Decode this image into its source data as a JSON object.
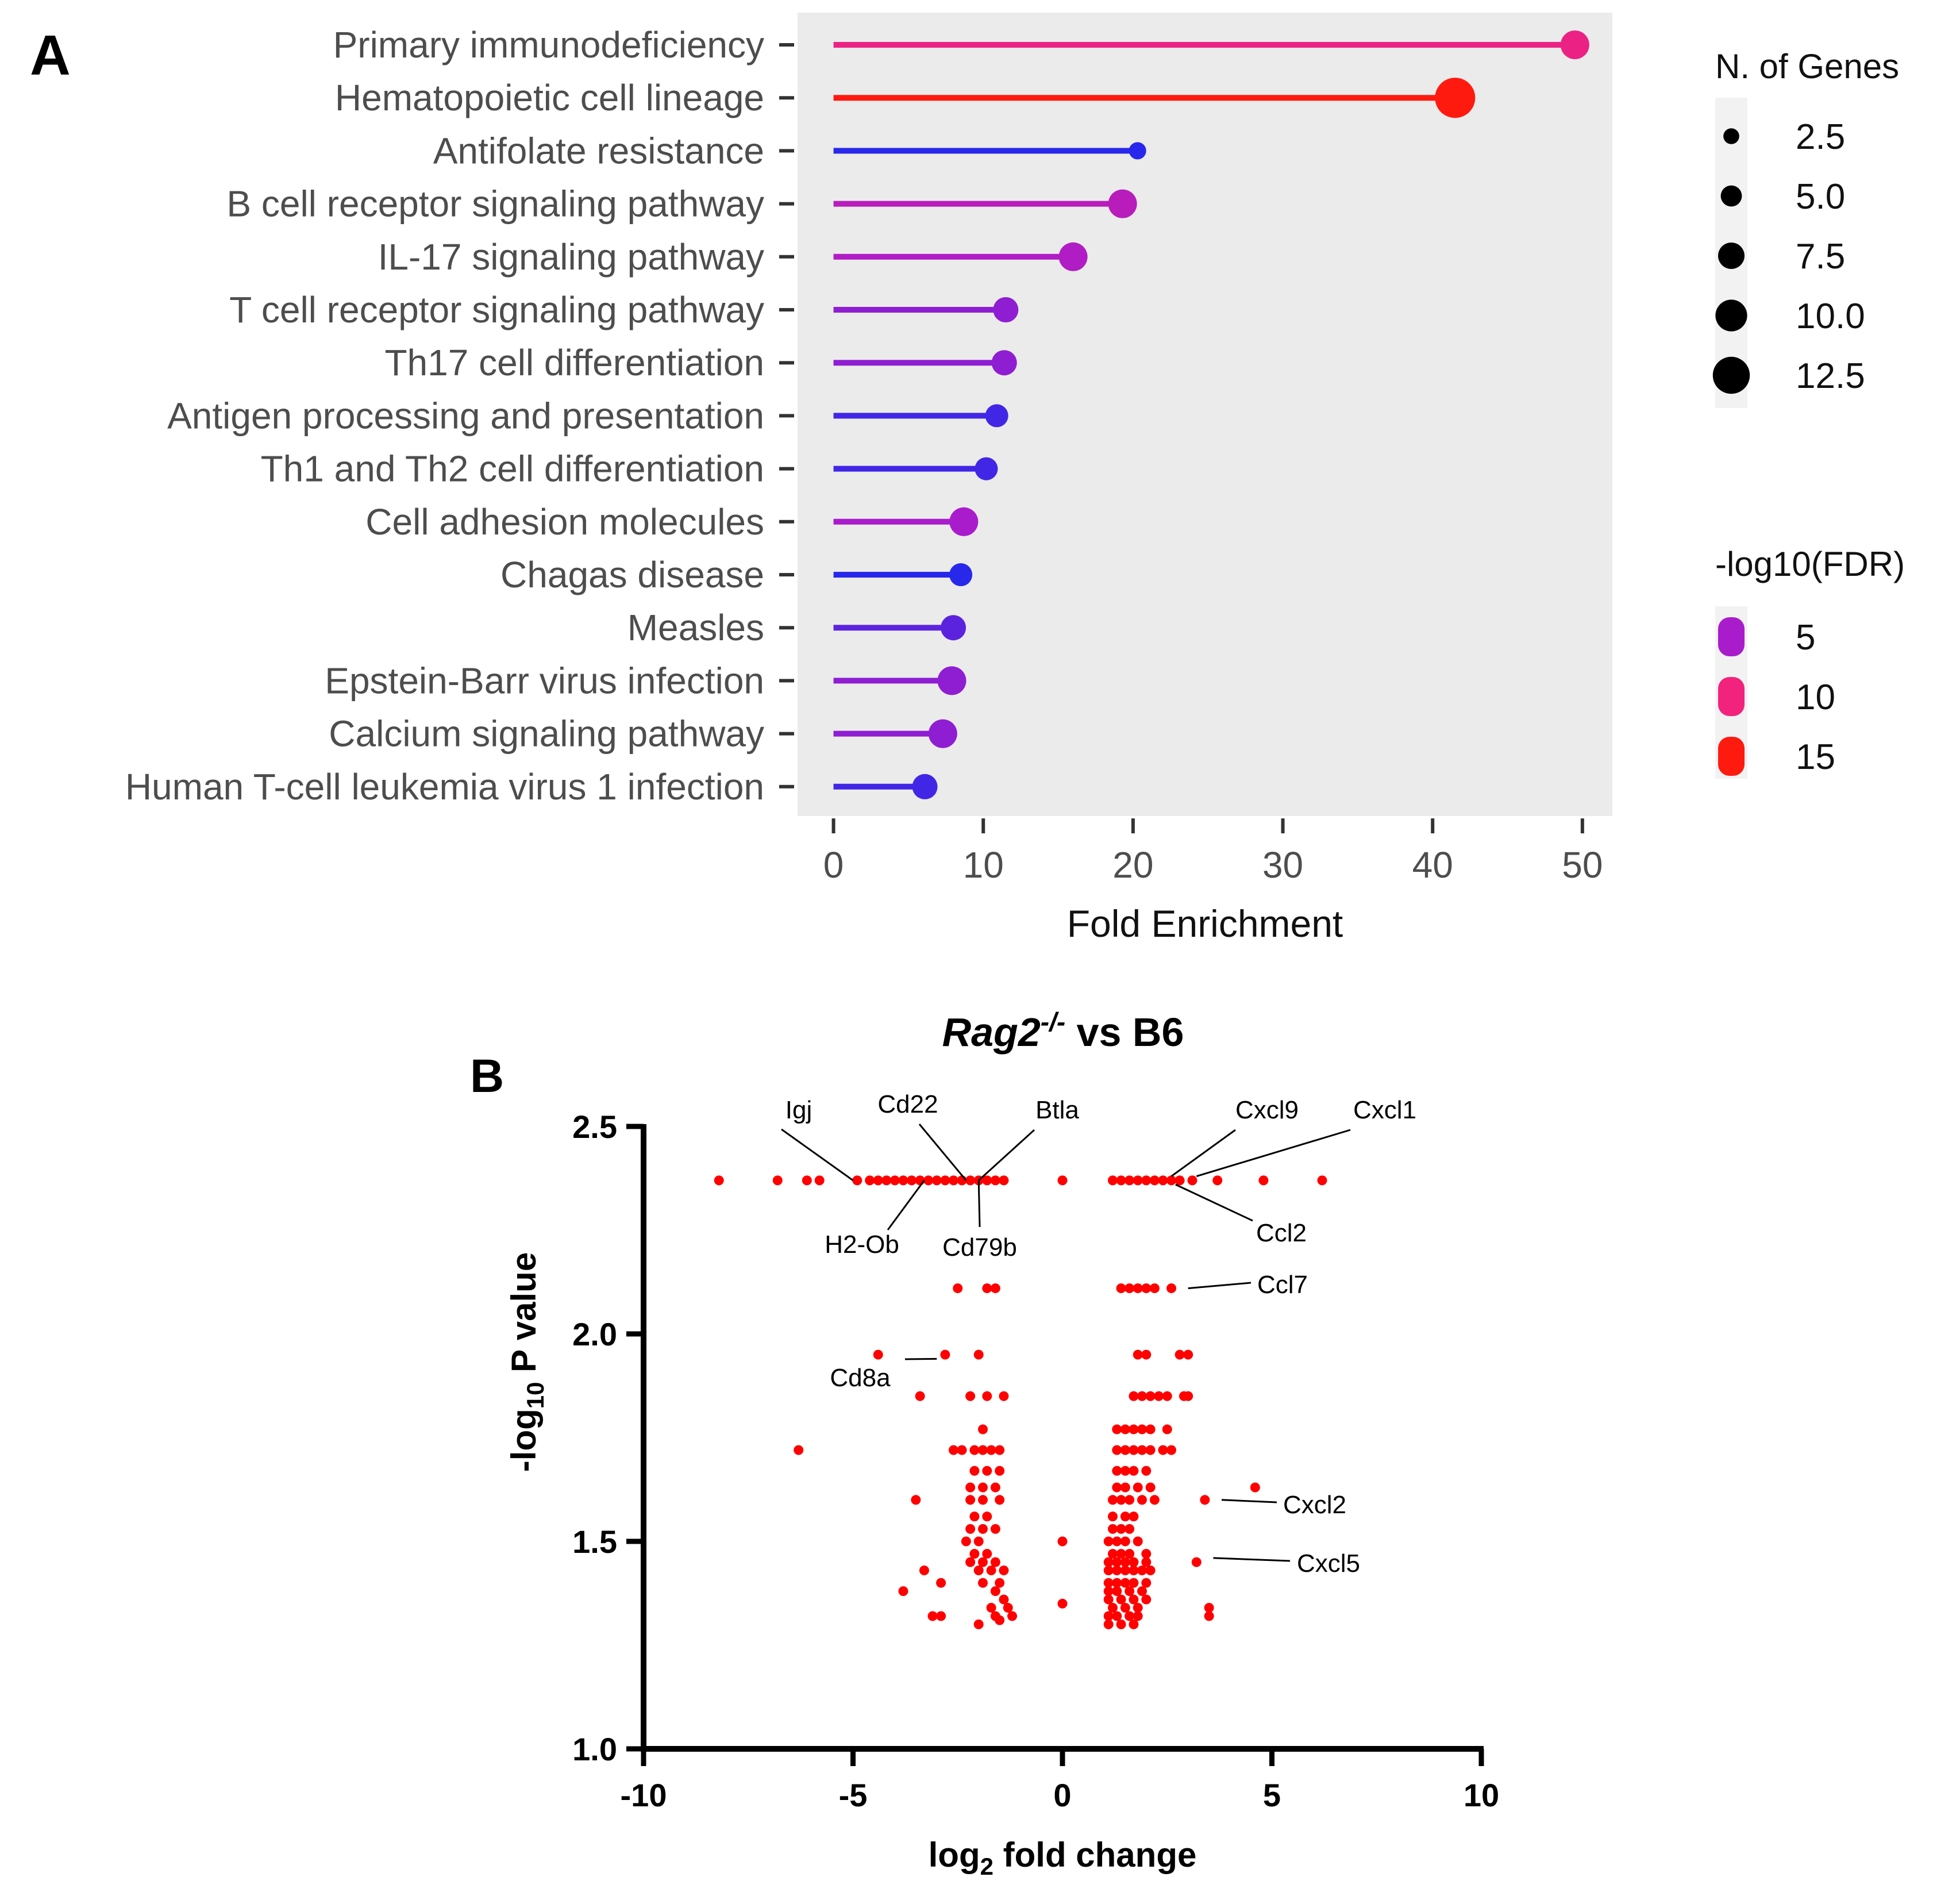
{
  "chart_data": [
    {
      "panel": "A",
      "type": "lollipop",
      "xlabel": "Fold Enrichment",
      "xlim": [
        -2.4,
        52
      ],
      "xticks": [
        0,
        10,
        20,
        30,
        40,
        50
      ],
      "pathways": [
        {
          "name": "Primary immunodeficiency",
          "fold": 49.5,
          "genes": 7.5,
          "fdr": 9.5
        },
        {
          "name": "Hematopoietic cell lineage",
          "fold": 41.5,
          "genes": 12.5,
          "fdr": 15
        },
        {
          "name": "Antifolate resistance",
          "fold": 20.3,
          "genes": 2.5,
          "fdr": 2.5
        },
        {
          "name": "B cell receptor signaling pathway",
          "fold": 19.3,
          "genes": 7.5,
          "fdr": 6
        },
        {
          "name": "IL-17 signaling pathway",
          "fold": 16.0,
          "genes": 7.5,
          "fdr": 5.5
        },
        {
          "name": "T cell receptor signaling pathway",
          "fold": 11.5,
          "genes": 6,
          "fdr": 4.5
        },
        {
          "name": "Th17 cell differentiation",
          "fold": 11.4,
          "genes": 6,
          "fdr": 4.5
        },
        {
          "name": "Antigen processing and presentation",
          "fold": 10.9,
          "genes": 5,
          "fdr": 3
        },
        {
          "name": "Th1 and Th2 cell differentiation",
          "fold": 10.2,
          "genes": 5,
          "fdr": 3
        },
        {
          "name": "Cell adhesion molecules",
          "fold": 8.7,
          "genes": 7.5,
          "fdr": 5
        },
        {
          "name": "Chagas disease",
          "fold": 8.5,
          "genes": 5,
          "fdr": 2.5
        },
        {
          "name": "Measles",
          "fold": 8.0,
          "genes": 6,
          "fdr": 3.5
        },
        {
          "name": "Epstein-Barr virus infection",
          "fold": 7.9,
          "genes": 7.5,
          "fdr": 4.5
        },
        {
          "name": "Calcium signaling pathway",
          "fold": 7.3,
          "genes": 7.5,
          "fdr": 4.5
        },
        {
          "name": "Human T-cell leukemia virus 1 infection",
          "fold": 6.1,
          "genes": 6,
          "fdr": 3
        }
      ],
      "size_legend": {
        "title": "N. of Genes",
        "values": [
          2.5,
          5.0,
          7.5,
          10.0,
          12.5
        ],
        "labels": [
          "2.5",
          "5.0",
          "7.5",
          "10.0",
          "12.5"
        ]
      },
      "color_legend": {
        "title": "-log10(FDR)",
        "labels": [
          "5",
          "10",
          "15"
        ],
        "colors": [
          "#a91ccc",
          "#f2237c",
          "#ff1a10"
        ]
      }
    },
    {
      "panel": "B",
      "type": "scatter",
      "title_italic": "Rag2",
      "title_sup": "-/-",
      "title_rest": " vs B6",
      "xlabel_main": "log",
      "xlabel_sub": "2",
      "xlabel_rest": " fold change",
      "ylabel_main": "-log",
      "ylabel_sub": "10",
      "ylabel_rest": " P value",
      "xlim": [
        -10,
        10
      ],
      "ylim": [
        1.0,
        2.5
      ],
      "xticks": [
        -10,
        -5,
        0,
        5,
        10
      ],
      "yticks": [
        1.0,
        1.5,
        2.0,
        2.5
      ],
      "xtick_labels": [
        "-10",
        "-5",
        "0",
        "5",
        "10"
      ],
      "ytick_labels": [
        "1.0",
        "1.5",
        "2.0",
        "2.5"
      ],
      "point_color": "#ff0000",
      "points": [
        [
          -8.2,
          2.37
        ],
        [
          -6.8,
          2.37
        ],
        [
          -6.1,
          2.37
        ],
        [
          -5.8,
          2.37
        ],
        [
          -4.9,
          2.37
        ],
        [
          -4.6,
          2.37
        ],
        [
          -4.4,
          2.37
        ],
        [
          -4.2,
          2.37
        ],
        [
          -4.0,
          2.37
        ],
        [
          -3.8,
          2.37
        ],
        [
          -3.6,
          2.37
        ],
        [
          -3.4,
          2.37
        ],
        [
          -3.2,
          2.37
        ],
        [
          -3.0,
          2.37
        ],
        [
          -2.8,
          2.37
        ],
        [
          -2.6,
          2.37
        ],
        [
          -2.4,
          2.37
        ],
        [
          -2.2,
          2.37
        ],
        [
          -2.0,
          2.37
        ],
        [
          -1.8,
          2.37
        ],
        [
          -1.6,
          2.37
        ],
        [
          -1.4,
          2.37
        ],
        [
          0.0,
          2.37
        ],
        [
          1.2,
          2.37
        ],
        [
          1.4,
          2.37
        ],
        [
          1.6,
          2.37
        ],
        [
          1.8,
          2.37
        ],
        [
          2.0,
          2.37
        ],
        [
          2.2,
          2.37
        ],
        [
          2.4,
          2.37
        ],
        [
          2.6,
          2.37
        ],
        [
          2.8,
          2.37
        ],
        [
          3.1,
          2.37
        ],
        [
          3.7,
          2.37
        ],
        [
          4.8,
          2.37
        ],
        [
          6.2,
          2.37
        ],
        [
          -2.5,
          2.11
        ],
        [
          -1.8,
          2.11
        ],
        [
          -1.6,
          2.11
        ],
        [
          1.4,
          2.11
        ],
        [
          1.6,
          2.11
        ],
        [
          1.8,
          2.11
        ],
        [
          2.0,
          2.11
        ],
        [
          2.2,
          2.11
        ],
        [
          2.6,
          2.11
        ],
        [
          -4.4,
          1.95
        ],
        [
          -2.8,
          1.95
        ],
        [
          -2.0,
          1.95
        ],
        [
          1.8,
          1.95
        ],
        [
          2.0,
          1.95
        ],
        [
          2.8,
          1.95
        ],
        [
          3.0,
          1.95
        ],
        [
          -3.4,
          1.85
        ],
        [
          -2.2,
          1.85
        ],
        [
          -1.8,
          1.85
        ],
        [
          -1.4,
          1.85
        ],
        [
          1.7,
          1.85
        ],
        [
          1.9,
          1.85
        ],
        [
          2.1,
          1.85
        ],
        [
          2.3,
          1.85
        ],
        [
          2.5,
          1.85
        ],
        [
          2.9,
          1.85
        ],
        [
          3.0,
          1.85
        ],
        [
          -1.9,
          1.77
        ],
        [
          1.3,
          1.77
        ],
        [
          1.5,
          1.77
        ],
        [
          1.7,
          1.77
        ],
        [
          1.9,
          1.77
        ],
        [
          2.1,
          1.77
        ],
        [
          2.5,
          1.77
        ],
        [
          -6.3,
          1.72
        ],
        [
          -2.6,
          1.72
        ],
        [
          -2.4,
          1.72
        ],
        [
          -2.1,
          1.72
        ],
        [
          -1.9,
          1.72
        ],
        [
          -1.7,
          1.72
        ],
        [
          -1.5,
          1.72
        ],
        [
          1.3,
          1.72
        ],
        [
          1.5,
          1.72
        ],
        [
          1.7,
          1.72
        ],
        [
          1.9,
          1.72
        ],
        [
          2.1,
          1.72
        ],
        [
          2.4,
          1.72
        ],
        [
          2.6,
          1.72
        ],
        [
          -2.1,
          1.67
        ],
        [
          -1.8,
          1.67
        ],
        [
          -1.5,
          1.67
        ],
        [
          1.3,
          1.67
        ],
        [
          1.5,
          1.67
        ],
        [
          1.7,
          1.67
        ],
        [
          2.0,
          1.67
        ],
        [
          -2.2,
          1.63
        ],
        [
          -1.9,
          1.63
        ],
        [
          -1.6,
          1.63
        ],
        [
          1.3,
          1.63
        ],
        [
          1.5,
          1.63
        ],
        [
          1.8,
          1.63
        ],
        [
          2.1,
          1.63
        ],
        [
          4.6,
          1.63
        ],
        [
          -3.5,
          1.6
        ],
        [
          -2.2,
          1.6
        ],
        [
          -1.9,
          1.6
        ],
        [
          -1.5,
          1.6
        ],
        [
          1.2,
          1.6
        ],
        [
          1.4,
          1.6
        ],
        [
          1.6,
          1.6
        ],
        [
          1.9,
          1.6
        ],
        [
          2.2,
          1.6
        ],
        [
          3.4,
          1.6
        ],
        [
          -2.1,
          1.56
        ],
        [
          -1.8,
          1.56
        ],
        [
          1.2,
          1.56
        ],
        [
          1.5,
          1.56
        ],
        [
          1.7,
          1.56
        ],
        [
          -2.2,
          1.53
        ],
        [
          -1.9,
          1.53
        ],
        [
          -1.6,
          1.53
        ],
        [
          1.2,
          1.53
        ],
        [
          1.4,
          1.53
        ],
        [
          1.6,
          1.53
        ],
        [
          -2.3,
          1.5
        ],
        [
          -2.0,
          1.5
        ],
        [
          0.0,
          1.5
        ],
        [
          1.1,
          1.5
        ],
        [
          1.3,
          1.5
        ],
        [
          1.5,
          1.5
        ],
        [
          1.8,
          1.5
        ],
        [
          -2.1,
          1.47
        ],
        [
          -1.8,
          1.47
        ],
        [
          1.2,
          1.47
        ],
        [
          1.4,
          1.47
        ],
        [
          1.6,
          1.47
        ],
        [
          2.0,
          1.47
        ],
        [
          -2.2,
          1.45
        ],
        [
          -1.9,
          1.45
        ],
        [
          -1.6,
          1.45
        ],
        [
          1.1,
          1.45
        ],
        [
          1.3,
          1.45
        ],
        [
          1.5,
          1.45
        ],
        [
          1.7,
          1.45
        ],
        [
          2.0,
          1.45
        ],
        [
          3.2,
          1.45
        ],
        [
          -3.3,
          1.43
        ],
        [
          -2.0,
          1.43
        ],
        [
          -1.7,
          1.43
        ],
        [
          -1.4,
          1.43
        ],
        [
          1.1,
          1.43
        ],
        [
          1.3,
          1.43
        ],
        [
          1.5,
          1.43
        ],
        [
          1.7,
          1.43
        ],
        [
          1.9,
          1.43
        ],
        [
          2.1,
          1.43
        ],
        [
          -2.9,
          1.4
        ],
        [
          -1.9,
          1.4
        ],
        [
          -1.5,
          1.4
        ],
        [
          1.1,
          1.4
        ],
        [
          1.3,
          1.4
        ],
        [
          1.5,
          1.4
        ],
        [
          1.7,
          1.4
        ],
        [
          2.0,
          1.4
        ],
        [
          -3.8,
          1.38
        ],
        [
          -1.6,
          1.38
        ],
        [
          1.1,
          1.38
        ],
        [
          1.3,
          1.38
        ],
        [
          1.6,
          1.38
        ],
        [
          1.9,
          1.38
        ],
        [
          -1.4,
          1.36
        ],
        [
          0.0,
          1.35
        ],
        [
          1.1,
          1.36
        ],
        [
          1.4,
          1.36
        ],
        [
          1.7,
          1.36
        ],
        [
          2.0,
          1.36
        ],
        [
          -1.7,
          1.34
        ],
        [
          -1.3,
          1.34
        ],
        [
          1.2,
          1.34
        ],
        [
          1.5,
          1.34
        ],
        [
          1.8,
          1.34
        ],
        [
          3.5,
          1.34
        ],
        [
          -3.1,
          1.32
        ],
        [
          -2.9,
          1.32
        ],
        [
          -1.6,
          1.32
        ],
        [
          -1.2,
          1.32
        ],
        [
          1.1,
          1.32
        ],
        [
          1.3,
          1.32
        ],
        [
          1.6,
          1.32
        ],
        [
          1.8,
          1.32
        ],
        [
          3.5,
          1.32
        ],
        [
          -2.0,
          1.3
        ],
        [
          -1.5,
          1.31
        ],
        [
          1.1,
          1.3
        ],
        [
          1.4,
          1.3
        ],
        [
          1.7,
          1.3
        ]
      ],
      "annotations": [
        {
          "label": "Igj",
          "x": -5.0,
          "y": 2.37
        },
        {
          "label": "Cd22",
          "x": -2.3,
          "y": 2.37
        },
        {
          "label": "Btla",
          "x": -2.0,
          "y": 2.37
        },
        {
          "label": "H2-Ob",
          "x": -3.3,
          "y": 2.37
        },
        {
          "label": "Cd79b",
          "x": -2.0,
          "y": 2.37
        },
        {
          "label": "Cxcl9",
          "x": 2.6,
          "y": 2.38
        },
        {
          "label": "Cxcl1",
          "x": 3.2,
          "y": 2.38
        },
        {
          "label": "Ccl2",
          "x": 2.7,
          "y": 2.36
        },
        {
          "label": "Ccl7",
          "x": 3.0,
          "y": 2.11
        },
        {
          "label": "Cd8a",
          "x": -3.0,
          "y": 1.94
        },
        {
          "label": "Cxcl2",
          "x": 3.8,
          "y": 1.6
        },
        {
          "label": "Cxcl5",
          "x": 3.6,
          "y": 1.46
        }
      ]
    }
  ],
  "panel_labels": {
    "a": "A",
    "b": "B"
  }
}
